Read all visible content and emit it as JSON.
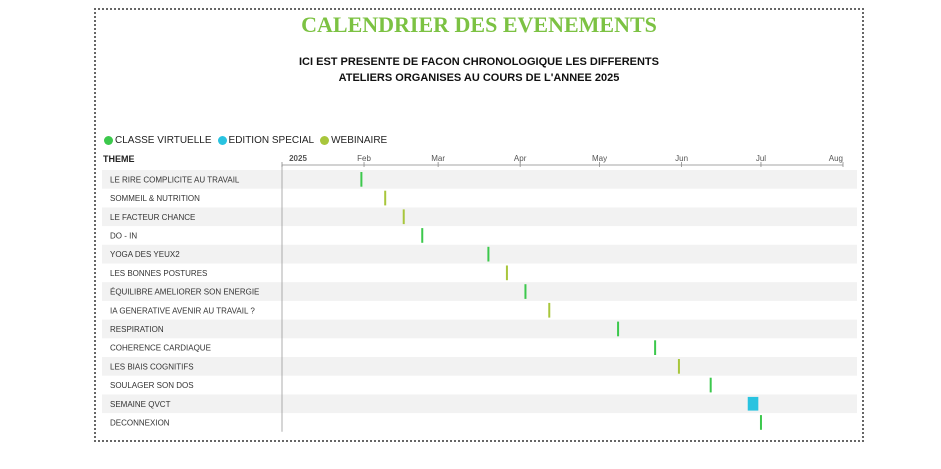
{
  "header": {
    "title": "CALENDRIER DES EVENEMENTS",
    "subtitle_line1": "ICI EST PRESENTE DE FACON CHRONOLOGIQUE LES DIFFERENTS",
    "subtitle_line2": "ATELIERS ORGANISES AU COURS DE L'ANNEE 2025"
  },
  "legend": [
    {
      "label": "CLASSE VIRTUELLE",
      "color": "#3cc84c"
    },
    {
      "label": "EDITION SPECIAL",
      "color": "#29c3e0"
    },
    {
      "label": "WEBINAIRE",
      "color": "#a8c63c"
    }
  ],
  "theme_header": "THEME",
  "chart_data": {
    "type": "gantt",
    "ylabel": "THEME",
    "x_range": [
      "2025-01-01",
      "2025-08-01"
    ],
    "x_ticks": [
      {
        "date": "2025-01-01",
        "label": "2025"
      },
      {
        "date": "2025-02-01",
        "label": "Feb"
      },
      {
        "date": "2025-03-01",
        "label": "Mar"
      },
      {
        "date": "2025-04-01",
        "label": "Apr"
      },
      {
        "date": "2025-05-01",
        "label": "May"
      },
      {
        "date": "2025-06-01",
        "label": "Jun"
      },
      {
        "date": "2025-07-01",
        "label": "Jul"
      },
      {
        "date": "2025-08-01",
        "label": "Aug"
      }
    ],
    "events": [
      {
        "theme": "LE RIRE COMPLICITE AU TRAVAIL",
        "start": "2025-01-31",
        "end": "2025-01-31",
        "type": "CLASSE VIRTUELLE"
      },
      {
        "theme": "SOMMEIL & NUTRITION",
        "start": "2025-02-09",
        "end": "2025-02-09",
        "type": "WEBINAIRE"
      },
      {
        "theme": "LE FACTEUR CHANCE",
        "start": "2025-02-16",
        "end": "2025-02-16",
        "type": "WEBINAIRE"
      },
      {
        "theme": "DO - IN",
        "start": "2025-02-23",
        "end": "2025-02-23",
        "type": "CLASSE VIRTUELLE"
      },
      {
        "theme": "YOGA DES YEUX2",
        "start": "2025-03-20",
        "end": "2025-03-20",
        "type": "CLASSE VIRTUELLE"
      },
      {
        "theme": "LES BONNES POSTURES",
        "start": "2025-03-27",
        "end": "2025-03-27",
        "type": "WEBINAIRE"
      },
      {
        "theme": "ÉQUILIBRE AMELIORER SON ENERGIE",
        "start": "2025-04-03",
        "end": "2025-04-03",
        "type": "CLASSE VIRTUELLE"
      },
      {
        "theme": "IA GENERATIVE AVENIR AU TRAVAIL ?",
        "start": "2025-04-12",
        "end": "2025-04-12",
        "type": "WEBINAIRE"
      },
      {
        "theme": "RESPIRATION",
        "start": "2025-05-08",
        "end": "2025-05-08",
        "type": "CLASSE VIRTUELLE"
      },
      {
        "theme": "COHERENCE CARDIAQUE",
        "start": "2025-05-22",
        "end": "2025-05-22",
        "type": "CLASSE VIRTUELLE"
      },
      {
        "theme": "LES BIAIS COGNITIFS",
        "start": "2025-05-31",
        "end": "2025-05-31",
        "type": "WEBINAIRE"
      },
      {
        "theme": "SOULAGER SON DOS",
        "start": "2025-06-12",
        "end": "2025-06-12",
        "type": "CLASSE VIRTUELLE"
      },
      {
        "theme": "SEMAINE QVCT",
        "start": "2025-06-26",
        "end": "2025-06-30",
        "type": "EDITION SPECIAL"
      },
      {
        "theme": "DECONNEXION",
        "start": "2025-07-01",
        "end": "2025-07-01",
        "type": "CLASSE VIRTUELLE"
      }
    ]
  }
}
